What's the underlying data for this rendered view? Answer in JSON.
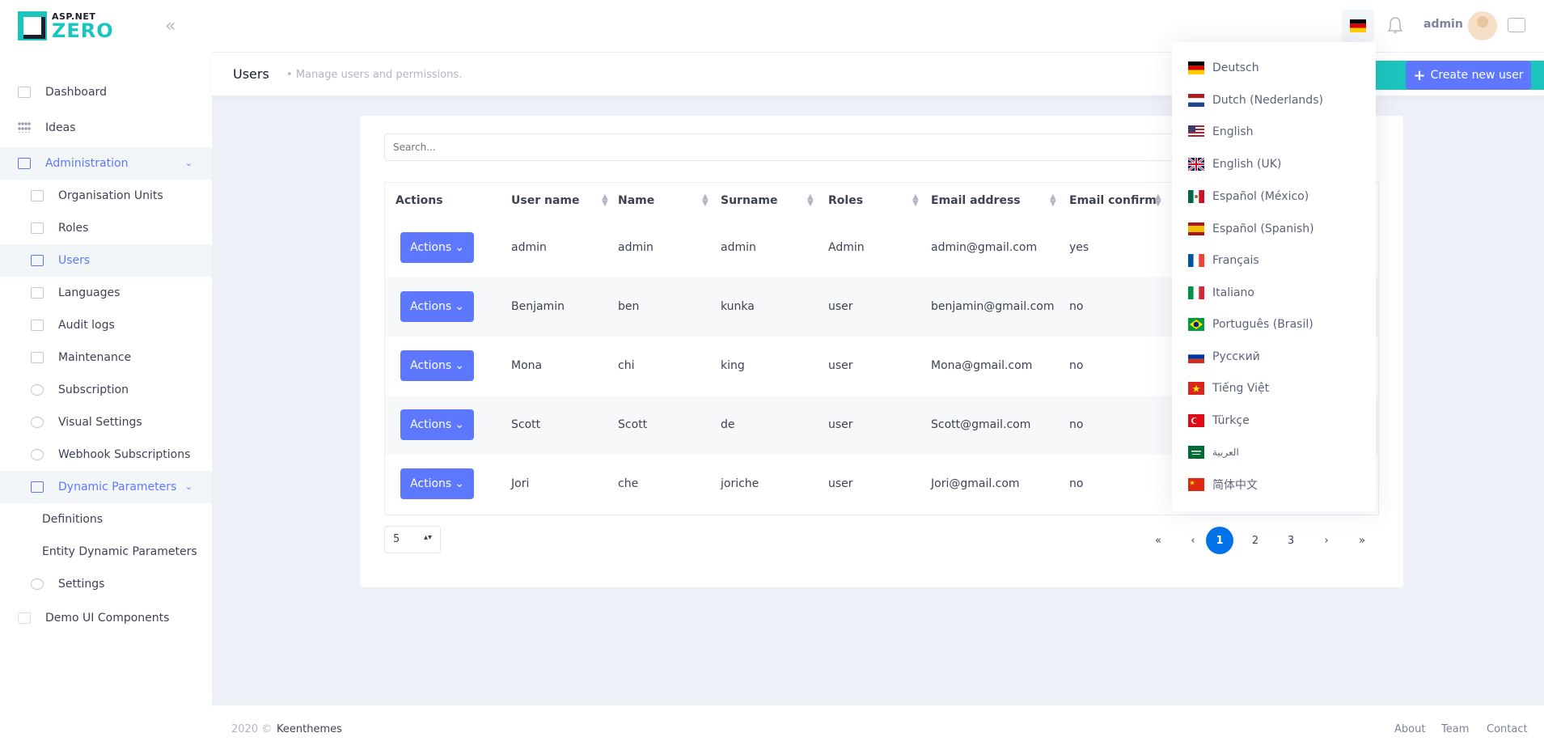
{
  "logo": {
    "top": "ASP.NET",
    "bottom": "ZERO"
  },
  "sidebar": {
    "items": [
      {
        "label": "Dashboard",
        "icon": "chart-icon"
      },
      {
        "label": "Ideas",
        "icon": "dots-icon"
      },
      {
        "label": "Administration",
        "icon": "admin-icon"
      },
      {
        "label": "Organisation Units",
        "icon": "org-icon"
      },
      {
        "label": "Roles",
        "icon": "briefcase-icon"
      },
      {
        "label": "Users",
        "icon": "user-icon"
      },
      {
        "label": "Languages",
        "icon": "window-icon"
      },
      {
        "label": "Audit logs",
        "icon": "folder-icon"
      },
      {
        "label": "Maintenance",
        "icon": "lock-icon"
      },
      {
        "label": "Subscription",
        "icon": "refresh-icon"
      },
      {
        "label": "Visual Settings",
        "icon": "eye-icon"
      },
      {
        "label": "Webhook Subscriptions",
        "icon": "globe-icon"
      },
      {
        "label": "Dynamic Parameters",
        "icon": "params-icon"
      },
      {
        "label": "Definitions"
      },
      {
        "label": "Entity Dynamic Parameters"
      },
      {
        "label": "Settings",
        "icon": "gear-icon"
      },
      {
        "label": "Demo UI Components",
        "icon": "grid-icon"
      }
    ]
  },
  "topbar": {
    "user": "admin"
  },
  "subheader": {
    "title": "Users",
    "description": "Manage users and permissions.",
    "create_label": "Create new user"
  },
  "search": {
    "placeholder": "Search..."
  },
  "table": {
    "headers": [
      "Actions",
      "User name",
      "Name",
      "Surname",
      "Roles",
      "Email address",
      "Email confirm"
    ],
    "action_label": "Actions",
    "rows": [
      {
        "username": "admin",
        "name": "admin",
        "surname": "admin",
        "roles": "Admin",
        "email": "admin@gmail.com",
        "confirmed": "yes"
      },
      {
        "username": "Benjamin",
        "name": "ben",
        "surname": "kunka",
        "roles": "user",
        "email": "benjamin@gmail.com",
        "confirmed": "no"
      },
      {
        "username": "Mona",
        "name": "chi",
        "surname": "king",
        "roles": "user",
        "email": "Mona@gmail.com",
        "confirmed": "no"
      },
      {
        "username": "Scott",
        "name": "Scott",
        "surname": "de",
        "roles": "user",
        "email": "Scott@gmail.com",
        "confirmed": "no"
      },
      {
        "username": "Jori",
        "name": "che",
        "surname": "joriche",
        "roles": "user",
        "email": "Jori@gmail.com",
        "confirmed": "no"
      }
    ]
  },
  "pagination": {
    "page_size": "5",
    "first": "«",
    "prev": "‹",
    "pages": [
      "1",
      "2",
      "3"
    ],
    "next": "›",
    "last": "»",
    "current": "1"
  },
  "languages": [
    {
      "label": "Deutsch",
      "flag": "de"
    },
    {
      "label": "Dutch (Nederlands)",
      "flag": "nl"
    },
    {
      "label": "English",
      "flag": "us"
    },
    {
      "label": "English (UK)",
      "flag": "gb"
    },
    {
      "label": "Español (México)",
      "flag": "mx"
    },
    {
      "label": "Español (Spanish)",
      "flag": "es"
    },
    {
      "label": "Français",
      "flag": "fr"
    },
    {
      "label": "Italiano",
      "flag": "it"
    },
    {
      "label": "Português (Brasil)",
      "flag": "br"
    },
    {
      "label": "Русский",
      "flag": "ru"
    },
    {
      "label": "Tiếng Việt",
      "flag": "vn"
    },
    {
      "label": "Türkçe",
      "flag": "tr"
    },
    {
      "label": "العربية",
      "flag": "sa"
    },
    {
      "label": "简体中文",
      "flag": "cn"
    }
  ],
  "footer": {
    "year": "2020 ©",
    "brand": "Keenthemes",
    "links": [
      "About",
      "Team",
      "Contact"
    ]
  },
  "colors": {
    "primary": "#5d78ff",
    "teal": "#1bc5bd",
    "page_active": "#0073e9"
  }
}
